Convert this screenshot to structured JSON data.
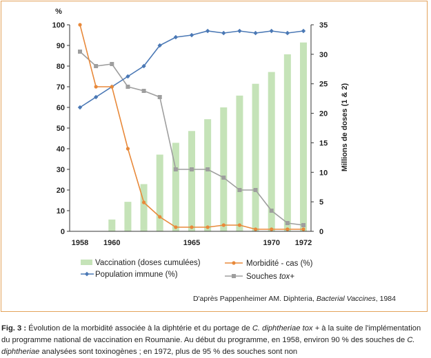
{
  "chart_data": {
    "type": "bar+line",
    "x": [
      1958,
      1959,
      1960,
      1961,
      1962,
      1963,
      1964,
      1965,
      1966,
      1967,
      1968,
      1969,
      1970,
      1971,
      1972
    ],
    "x_tick_labels": [
      "1958",
      "1960",
      "1965",
      "1970",
      "1972"
    ],
    "x_tick_values": [
      1958,
      1960,
      1965,
      1970,
      1972
    ],
    "left_axis": {
      "unit": "%",
      "range": [
        0,
        100
      ],
      "ticks": [
        "0",
        "10",
        "20",
        "30",
        "40",
        "50",
        "60",
        "70",
        "80",
        "90",
        "100"
      ]
    },
    "right_axis": {
      "label": "Millions de doses (1 & 2)",
      "range": [
        0,
        35
      ],
      "ticks": [
        "0",
        "5",
        "10",
        "15",
        "20",
        "25",
        "30",
        "35"
      ]
    },
    "series": [
      {
        "name": "Vaccination (doses cumulées)",
        "type": "bar",
        "axis": "right",
        "color": "#c5e3b8",
        "x": [
          1960,
          1961,
          1962,
          1963,
          1964,
          1965,
          1966,
          1967,
          1968,
          1969,
          1970,
          1971,
          1972
        ],
        "values": [
          2,
          5,
          8,
          13,
          15,
          17,
          19,
          21,
          23,
          25,
          27,
          30,
          32
        ]
      },
      {
        "name": "Morbidité - cas (%)",
        "type": "line",
        "axis": "left",
        "color": "#e8893a",
        "marker": "circle",
        "x": [
          1958,
          1959,
          1960,
          1961,
          1962,
          1963,
          1964,
          1965,
          1966,
          1967,
          1968,
          1969,
          1970,
          1971,
          1972
        ],
        "values": [
          100,
          70,
          70,
          40,
          14,
          7,
          2,
          2,
          2,
          3,
          3,
          1,
          1,
          1,
          1
        ]
      },
      {
        "name": "Population immune (%)",
        "type": "line",
        "axis": "left",
        "color": "#4a78b5",
        "marker": "diamond",
        "x": [
          1958,
          1959,
          1960,
          1961,
          1962,
          1963,
          1964,
          1965,
          1966,
          1967,
          1968,
          1969,
          1970,
          1971,
          1972
        ],
        "values": [
          60,
          65,
          70,
          75,
          80,
          90,
          94,
          95,
          97,
          96,
          97,
          96,
          97,
          96,
          97
        ]
      },
      {
        "name_prefix": "Souches ",
        "name_italic": "tox+",
        "type": "line",
        "axis": "left",
        "color": "#9e9e9e",
        "marker": "square",
        "x": [
          1958,
          1959,
          1960,
          1961,
          1962,
          1963,
          1964,
          1965,
          1966,
          1967,
          1968,
          1969,
          1970,
          1971,
          1972
        ],
        "values": [
          87,
          80,
          81,
          70,
          68,
          65,
          30,
          30,
          30,
          26,
          20,
          20,
          10,
          4,
          3
        ]
      }
    ]
  },
  "source": {
    "prefix": "D'après Pappenheimer AM. Diphteria, ",
    "italic": "Bacterial Vaccines",
    "suffix": ", 1984"
  },
  "caption": {
    "label": "Fig. 3 :",
    "text_1": " Évolution de la morbidité associée à la diphtérie et du portage de ",
    "italic_1": "C. diphtheriae tox +",
    "text_2": " à la suite de l'implémentation du programme national de vaccination en Roumanie. Au début du programme, en 1958, environ 90 % des souches de ",
    "italic_2": "C. diphtheriae",
    "text_3": " analysées sont toxinogènes ; en 1972, plus de 95 % des souches sont non"
  }
}
